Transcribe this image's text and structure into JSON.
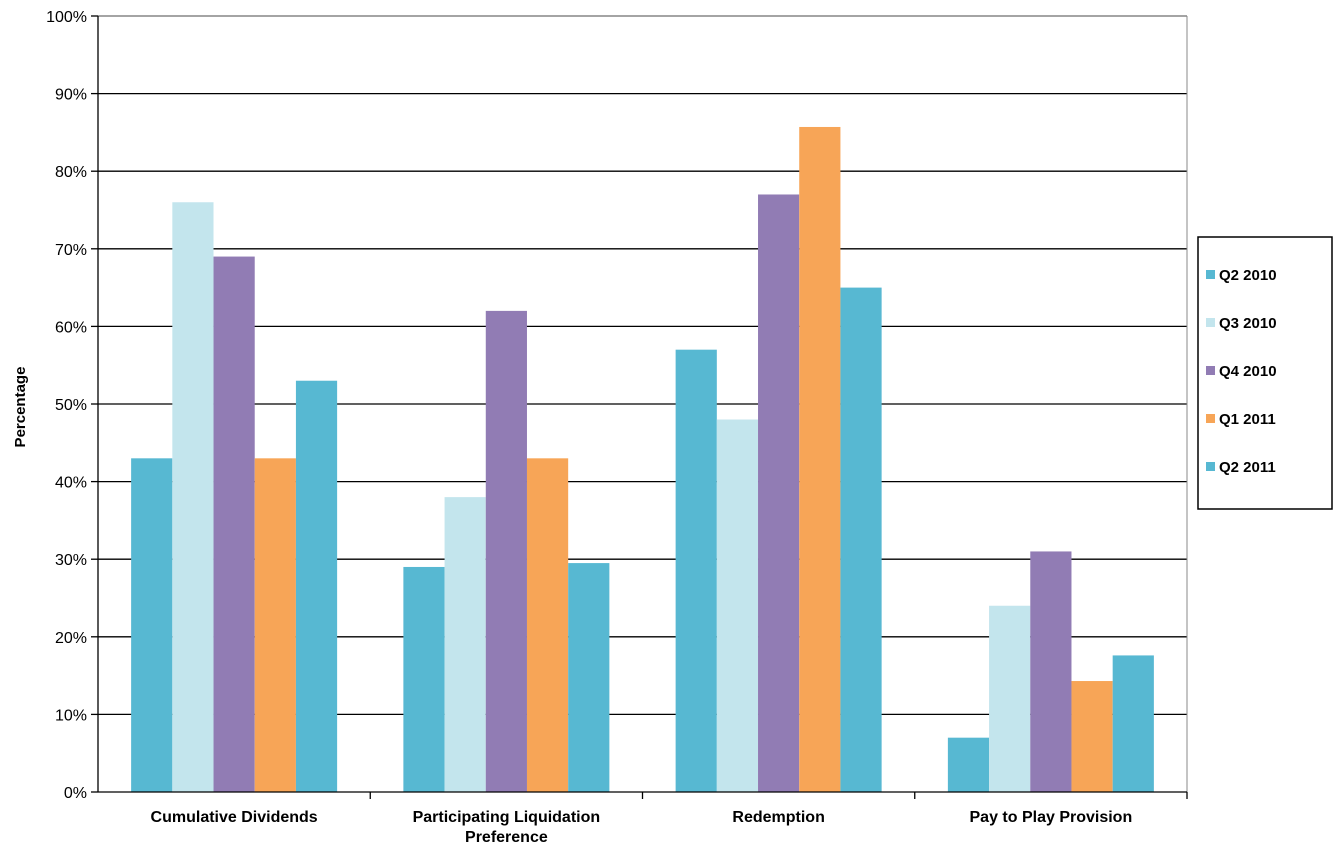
{
  "chart_data": {
    "type": "bar",
    "title": "",
    "xlabel": "",
    "ylabel": "Percentage",
    "ylim": [
      0,
      100
    ],
    "yticks": [
      "0%",
      "10%",
      "20%",
      "30%",
      "40%",
      "50%",
      "60%",
      "70%",
      "80%",
      "90%",
      "100%"
    ],
    "grid": "horizontal",
    "legend_position": "right",
    "categories": [
      [
        "Cumulative Dividends"
      ],
      [
        "Participating Liquidation",
        "Preference"
      ],
      [
        "Redemption"
      ],
      [
        "Pay to Play Provision"
      ]
    ],
    "series": [
      {
        "name": "Q2 2010",
        "color": "#57b8d2",
        "values": [
          43,
          29,
          57,
          7
        ]
      },
      {
        "name": "Q3 2010",
        "color": "#c3e5ed",
        "values": [
          76,
          38,
          48,
          24
        ]
      },
      {
        "name": "Q4 2010",
        "color": "#917cb4",
        "values": [
          69,
          62,
          77,
          31
        ]
      },
      {
        "name": "Q1 2011",
        "color": "#f7a557",
        "values": [
          43,
          43,
          85.7,
          14.3
        ]
      },
      {
        "name": "Q2 2011",
        "color": "#57b8d2",
        "values": [
          53,
          29.5,
          65,
          17.6
        ]
      }
    ]
  }
}
